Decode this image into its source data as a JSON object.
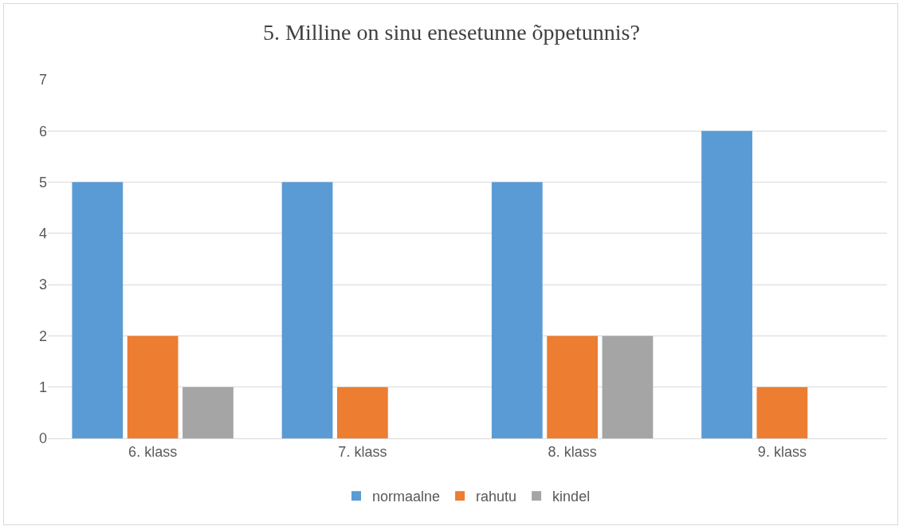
{
  "chart_data": {
    "type": "bar",
    "title": "5. Milline on sinu enesetunne õppetunnis?",
    "categories": [
      "6. klass",
      "7. klass",
      "8. klass",
      "9. klass"
    ],
    "series": [
      {
        "name": "normaalne",
        "color": "#5b9bd5",
        "values": [
          5,
          5,
          5,
          6
        ]
      },
      {
        "name": "rahutu",
        "color": "#ed7d31",
        "values": [
          2,
          1,
          2,
          1
        ]
      },
      {
        "name": "kindel",
        "color": "#a5a5a5",
        "values": [
          1,
          0,
          2,
          0
        ]
      }
    ],
    "ylim": [
      0,
      7
    ],
    "yticks": [
      0,
      1,
      2,
      3,
      4,
      5,
      6,
      7
    ],
    "grid": "y",
    "legend": "bottom"
  }
}
